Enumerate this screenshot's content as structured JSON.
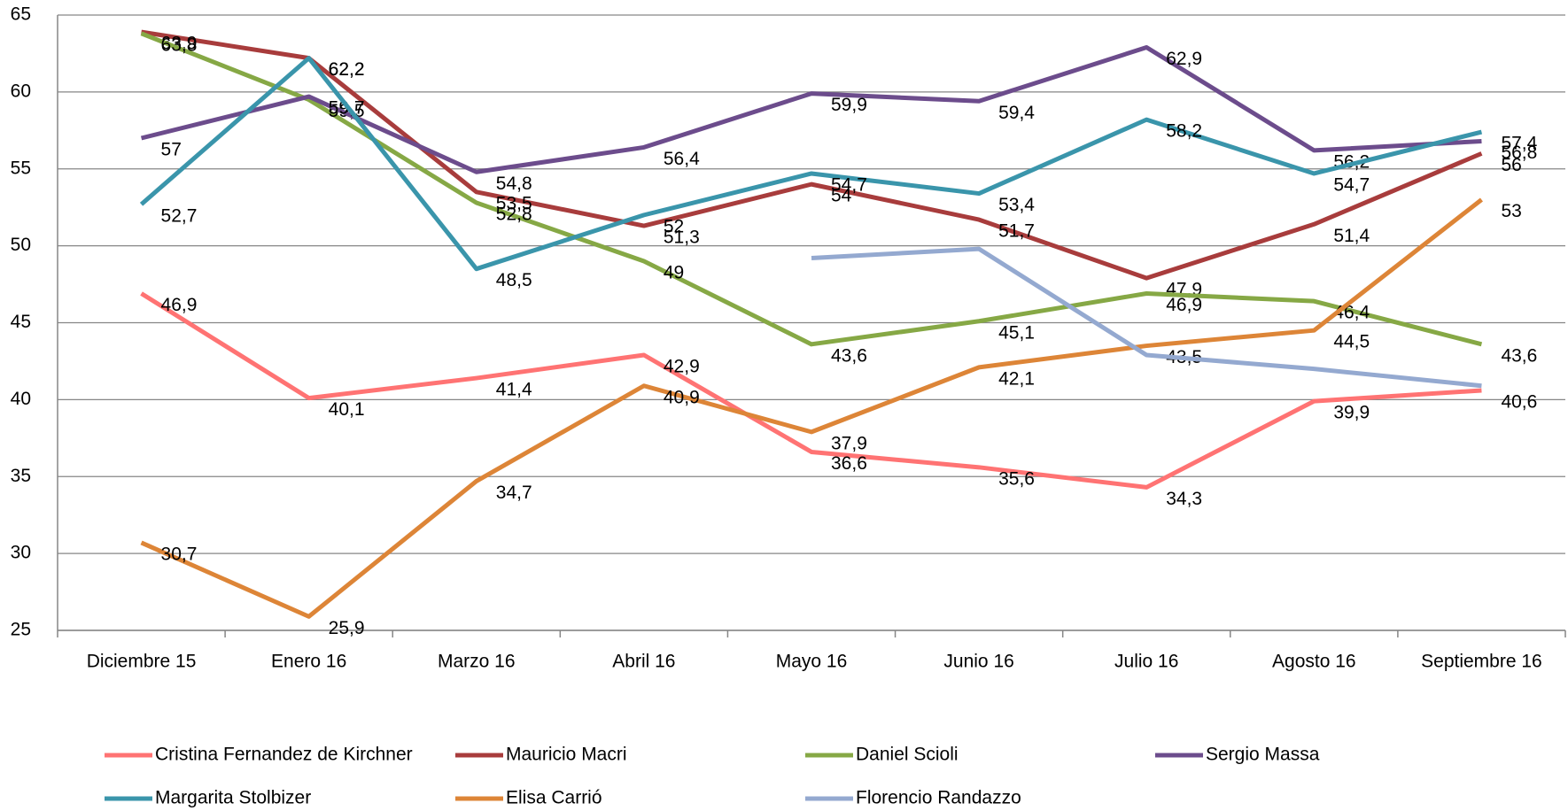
{
  "chart_data": {
    "type": "line",
    "categories": [
      "Diciembre 15",
      "Enero 16",
      "Marzo 16",
      "Abril 16",
      "Mayo 16",
      "Junio 16",
      "Julio 16",
      "Agosto 16",
      "Septiembre 16"
    ],
    "ylim": [
      25,
      65
    ],
    "yticks": [
      25,
      30,
      35,
      40,
      45,
      50,
      55,
      60,
      65
    ],
    "grid": true,
    "legend": "bottom",
    "series": [
      {
        "name": "Cristina Fernandez de Kirchner",
        "color": "#ff7373",
        "values": [
          46.9,
          40.1,
          41.4,
          42.9,
          36.6,
          35.6,
          34.3,
          39.9,
          40.6
        ],
        "value_labels": [
          "46,9",
          "40,1",
          "41,4",
          "42,9",
          "36,6",
          "35,6",
          "34,3",
          "39,9",
          "40,6"
        ]
      },
      {
        "name": "Mauricio Macri",
        "color": "#a83c3c",
        "values": [
          63.9,
          62.2,
          53.5,
          51.3,
          54,
          51.7,
          47.9,
          51.4,
          56
        ],
        "value_labels": [
          "63,9",
          "62,2",
          "53,5",
          "51,3",
          "54",
          "51,7",
          "47,9",
          "51,4",
          "56"
        ]
      },
      {
        "name": "Daniel Scioli",
        "color": "#86a845",
        "values": [
          63.8,
          59.5,
          52.8,
          49,
          43.6,
          45.1,
          46.9,
          46.4,
          43.6
        ],
        "value_labels": [
          "63,8",
          "59,5",
          "52,8",
          "49",
          "43,6",
          "45,1",
          "46,9",
          "46,4",
          "43,6"
        ]
      },
      {
        "name": "Sergio Massa",
        "color": "#6c4c8c",
        "values": [
          57,
          59.7,
          54.8,
          56.4,
          59.9,
          59.4,
          62.9,
          56.2,
          56.8
        ],
        "value_labels": [
          "57",
          "59,7",
          "54,8",
          "56,4",
          "59,9",
          "59,4",
          "62,9",
          "56,2",
          "56,8"
        ]
      },
      {
        "name": "Margarita Stolbizer",
        "color": "#3a95ab",
        "values": [
          52.7,
          62.2,
          48.5,
          52,
          54.7,
          53.4,
          58.2,
          54.7,
          57.4
        ],
        "value_labels": [
          "52,7",
          "62,2",
          "48,5",
          "52",
          "54,7",
          "53,4",
          "58,2",
          "54,7",
          "57,4"
        ]
      },
      {
        "name": "Elisa Carrió",
        "color": "#dd8537",
        "values": [
          30.7,
          25.9,
          34.7,
          40.9,
          37.9,
          42.1,
          43.5,
          44.5,
          53
        ],
        "value_labels": [
          "30,7",
          "25,9",
          "34,7",
          "40,9",
          "37,9",
          "42,1",
          "43,5",
          "44,5",
          "53"
        ]
      },
      {
        "name": "Florencio Randazzo",
        "color": "#94a9d0",
        "values": [
          null,
          null,
          null,
          null,
          49.2,
          49.8,
          42.9,
          42,
          40.9
        ]
      }
    ]
  }
}
